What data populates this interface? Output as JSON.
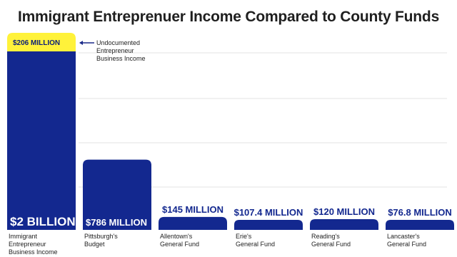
{
  "chart_data": {
    "type": "bar",
    "title": "Immigrant Entreprenuer Income Compared to County Funds",
    "unit": "MILLION",
    "categories": [
      [
        "Immigrant",
        "Entrepreneur",
        "Business Income"
      ],
      [
        "Pittsburgh's",
        "Budget"
      ],
      [
        "Allentown's",
        "General Fund"
      ],
      [
        "Erie's",
        "General Fund"
      ],
      [
        "Reading's",
        "General Fund"
      ],
      [
        "Lancaster's",
        "General Fund"
      ]
    ],
    "values": [
      2000,
      786,
      145,
      107.4,
      120,
      76.8
    ],
    "value_labels": [
      "$2 BILLION",
      "$786 MILLION",
      "$145 MILLION",
      "$107.4 MILLION",
      "$120 MILLION",
      "$76.8 MILLION"
    ],
    "stacked_highlight": {
      "category_index": 0,
      "value": 206,
      "label": "$206  MILLION",
      "annotation": [
        "Undocumented",
        "Entrepreneur",
        "Business Income"
      ],
      "color": "#fff23a"
    },
    "ylim": [
      0,
      2206
    ],
    "grid": true,
    "legend": "none",
    "colors": {
      "bar": "#13288f",
      "highlight": "#fff23a",
      "grid": "#e3e3e3"
    }
  }
}
